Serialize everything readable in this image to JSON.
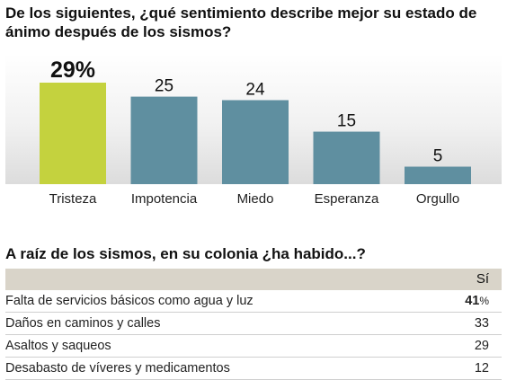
{
  "question1": "De los siguientes, ¿qué sentimiento describe mejor su estado de ánimo después de los sismos?",
  "chart_data": {
    "type": "bar",
    "categories": [
      "Tristeza",
      "Impotencia",
      "Miedo",
      "Esperanza",
      "Orgullo"
    ],
    "values": [
      29,
      25,
      24,
      15,
      5
    ],
    "value_labels": [
      "29%",
      "25",
      "24",
      "15",
      "5"
    ],
    "highlight_index": 0,
    "colors": {
      "highlight": "#c4d23e",
      "default": "#5f8fa0"
    },
    "ylim": [
      0,
      29
    ],
    "grid": false,
    "legend": "none"
  },
  "question2": "A raíz de los sismos, en su colonia ¿ha habido...?",
  "table": {
    "column_header": "Sí",
    "rows": [
      {
        "label": "Falta de servicios básicos como agua y luz",
        "value": "41",
        "suffix": "%"
      },
      {
        "label": "Daños en caminos y calles",
        "value": "33"
      },
      {
        "label": "Asaltos y saqueos",
        "value": "29"
      },
      {
        "label": "Desabasto de víveres y medicamentos",
        "value": "12"
      }
    ]
  }
}
